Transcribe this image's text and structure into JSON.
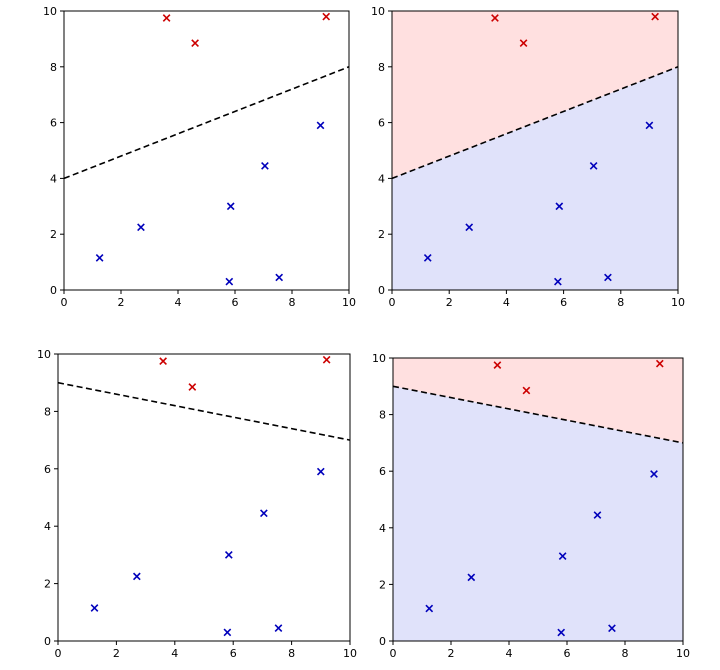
{
  "chart_data": [
    {
      "type": "scatter",
      "title": "",
      "xlabel": "",
      "ylabel": "",
      "xlim": [
        0,
        10
      ],
      "ylim": [
        0,
        10
      ],
      "xticks": [
        "0",
        "2",
        "4",
        "6",
        "8",
        "10"
      ],
      "yticks": [
        "0",
        "2",
        "4",
        "6",
        "8",
        "10"
      ],
      "grid": false,
      "region_shading": false,
      "decision_boundary": {
        "x": [
          0,
          10
        ],
        "y": [
          4,
          8
        ],
        "style": "dashed",
        "color": "#000000"
      },
      "series": [
        {
          "marker": "x",
          "color": "#cc0000",
          "points": [
            [
              3.6,
              9.75
            ],
            [
              4.6,
              8.85
            ],
            [
              9.2,
              9.8
            ]
          ]
        },
        {
          "marker": "x",
          "color": "#0000bb",
          "points": [
            [
              1.25,
              1.15
            ],
            [
              2.7,
              2.25
            ],
            [
              5.85,
              3.0
            ],
            [
              7.05,
              4.45
            ],
            [
              9.0,
              5.9
            ],
            [
              5.8,
              0.3
            ],
            [
              7.55,
              0.45
            ]
          ]
        }
      ]
    },
    {
      "type": "scatter",
      "title": "",
      "xlabel": "",
      "ylabel": "",
      "xlim": [
        0,
        10
      ],
      "ylim": [
        0,
        10
      ],
      "xticks": [
        "0",
        "2",
        "4",
        "6",
        "8",
        "10"
      ],
      "yticks": [
        "0",
        "2",
        "4",
        "6",
        "8",
        "10"
      ],
      "grid": false,
      "region_shading": true,
      "region_colors": {
        "above": "#ffe0e0",
        "below": "#e0e2fa"
      },
      "decision_boundary": {
        "x": [
          0,
          10
        ],
        "y": [
          4,
          8
        ],
        "style": "dashed",
        "color": "#000000"
      },
      "series": [
        {
          "marker": "x",
          "color": "#cc0000",
          "points": [
            [
              3.6,
              9.75
            ],
            [
              4.6,
              8.85
            ],
            [
              9.2,
              9.8
            ]
          ]
        },
        {
          "marker": "x",
          "color": "#0000bb",
          "points": [
            [
              1.25,
              1.15
            ],
            [
              2.7,
              2.25
            ],
            [
              5.85,
              3.0
            ],
            [
              7.05,
              4.45
            ],
            [
              9.0,
              5.9
            ],
            [
              5.8,
              0.3
            ],
            [
              7.55,
              0.45
            ]
          ]
        }
      ]
    },
    {
      "type": "scatter",
      "title": "",
      "xlabel": "",
      "ylabel": "",
      "xlim": [
        0,
        10
      ],
      "ylim": [
        0,
        10
      ],
      "xticks": [
        "0",
        "2",
        "4",
        "6",
        "8",
        "10"
      ],
      "yticks": [
        "0",
        "2",
        "4",
        "6",
        "8",
        "10"
      ],
      "grid": false,
      "region_shading": false,
      "decision_boundary": {
        "x": [
          0,
          10
        ],
        "y": [
          9,
          7
        ],
        "style": "dashed",
        "color": "#000000"
      },
      "series": [
        {
          "marker": "x",
          "color": "#cc0000",
          "points": [
            [
              3.6,
              9.75
            ],
            [
              4.6,
              8.85
            ],
            [
              9.2,
              9.8
            ]
          ]
        },
        {
          "marker": "x",
          "color": "#0000bb",
          "points": [
            [
              1.25,
              1.15
            ],
            [
              2.7,
              2.25
            ],
            [
              5.85,
              3.0
            ],
            [
              7.05,
              4.45
            ],
            [
              9.0,
              5.9
            ],
            [
              5.8,
              0.3
            ],
            [
              7.55,
              0.45
            ]
          ]
        }
      ]
    },
    {
      "type": "scatter",
      "title": "",
      "xlabel": "",
      "ylabel": "",
      "xlim": [
        0,
        10
      ],
      "ylim": [
        0,
        10
      ],
      "xticks": [
        "0",
        "2",
        "4",
        "6",
        "8",
        "10"
      ],
      "yticks": [
        "0",
        "2",
        "4",
        "6",
        "8",
        "10"
      ],
      "grid": false,
      "region_shading": true,
      "region_colors": {
        "above": "#ffe0e0",
        "below": "#e0e2fa"
      },
      "decision_boundary": {
        "x": [
          0,
          10
        ],
        "y": [
          9,
          7
        ],
        "style": "dashed",
        "color": "#000000"
      },
      "series": [
        {
          "marker": "x",
          "color": "#cc0000",
          "points": [
            [
              3.6,
              9.75
            ],
            [
              4.6,
              8.85
            ],
            [
              9.2,
              9.8
            ]
          ]
        },
        {
          "marker": "x",
          "color": "#0000bb",
          "points": [
            [
              1.25,
              1.15
            ],
            [
              2.7,
              2.25
            ],
            [
              5.85,
              3.0
            ],
            [
              7.05,
              4.45
            ],
            [
              9.0,
              5.9
            ],
            [
              5.8,
              0.3
            ],
            [
              7.55,
              0.45
            ]
          ]
        }
      ]
    }
  ]
}
